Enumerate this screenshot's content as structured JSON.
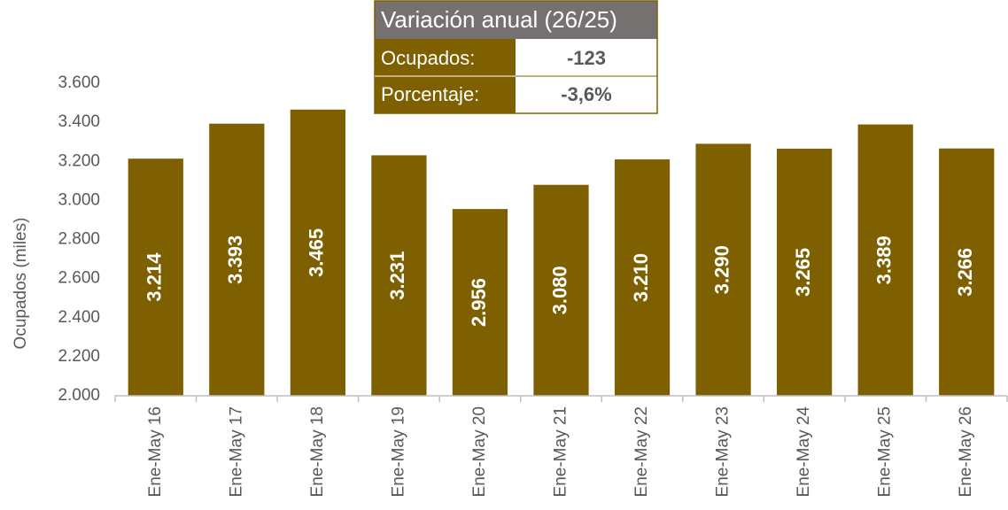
{
  "chart_data": {
    "type": "bar",
    "y_axis_label": "Ocupados (miles)",
    "categories": [
      "Ene-May 16",
      "Ene-May 17",
      "Ene-May 18",
      "Ene-May 19",
      "Ene-May 20",
      "Ene-May 21",
      "Ene-May 22",
      "Ene-May 23",
      "Ene-May 24",
      "Ene-May 25",
      "Ene-May 26"
    ],
    "values": [
      3214,
      3393,
      3465,
      3231,
      2956,
      3080,
      3210,
      3290,
      3265,
      3389,
      3266
    ],
    "value_labels": [
      "3.214",
      "3.393",
      "3.465",
      "3.231",
      "2.956",
      "3.080",
      "3.210",
      "3.290",
      "3.265",
      "3.389",
      "3.266"
    ],
    "color": "#7f6000",
    "ylim": [
      2000,
      3600
    ],
    "yticks": [
      {
        "value": 2000,
        "label": "2.000"
      },
      {
        "value": 2200,
        "label": "2.200"
      },
      {
        "value": 2400,
        "label": "2.400"
      },
      {
        "value": 2600,
        "label": "2.600"
      },
      {
        "value": 2800,
        "label": "2.800"
      },
      {
        "value": 3000,
        "label": "3.000"
      },
      {
        "value": 3200,
        "label": "3.200"
      },
      {
        "value": 3400,
        "label": "3.400"
      },
      {
        "value": 3600,
        "label": "3.600"
      }
    ],
    "grid": false,
    "annotation": {
      "title": "Variación anual (26/25)",
      "rows": [
        [
          "Ocupados:",
          "-123"
        ],
        [
          "Porcentaje:",
          "-3,6%"
        ]
      ]
    }
  }
}
